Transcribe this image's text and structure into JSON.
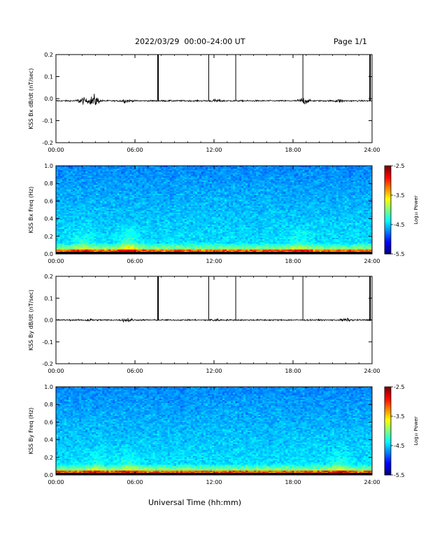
{
  "header": {
    "title": "2022/03/29  00:00–24:00 UT",
    "page": "Page 1/1"
  },
  "x_axis_label": "Universal Time (hh:mm)",
  "chart_data": [
    {
      "id": "bx_series",
      "type": "line",
      "ylabel": "KSS Bx dB/dt (nT/sec)",
      "ylim": [
        -0.2,
        0.2
      ],
      "xlim_hours": [
        0,
        24
      ],
      "x_tick_labels": [
        "00:00",
        "06:00",
        "12:00",
        "18:00",
        "24:00"
      ],
      "y_tick_labels": [
        "0.2",
        "0.1",
        "0.0",
        "-0.1",
        "-0.2"
      ],
      "baseline": -0.01,
      "noise_amplitude": 0.004,
      "spikes": [
        {
          "t_hours": 7.75,
          "y": 0.2
        },
        {
          "t_hours": 11.6,
          "y": 0.2
        },
        {
          "t_hours": 13.65,
          "y": 0.2
        },
        {
          "t_hours": 18.75,
          "y": 0.2
        },
        {
          "t_hours": 23.85,
          "y": 0.2
        }
      ],
      "disturbances": [
        {
          "t_hours": 2.0,
          "amp": 0.018
        },
        {
          "t_hours": 2.9,
          "amp": 0.035
        },
        {
          "t_hours": 5.3,
          "amp": 0.01
        },
        {
          "t_hours": 12.2,
          "amp": 0.008
        },
        {
          "t_hours": 18.8,
          "amp": 0.02
        },
        {
          "t_hours": 21.5,
          "amp": 0.008
        }
      ]
    },
    {
      "id": "bx_spectrogram",
      "type": "heatmap",
      "ylabel": "KSS Bx Freq (Hz)",
      "ylim": [
        0.0,
        1.0
      ],
      "xlim_hours": [
        0,
        24
      ],
      "x_tick_labels": [
        "00:00",
        "06:00",
        "12:00",
        "18:00",
        "24:00"
      ],
      "y_tick_labels": [
        "1.0",
        "0.8",
        "0.6",
        "0.4",
        "0.2",
        "0.0"
      ],
      "colorbar_label": "Log₁₀ Power",
      "colorbar_ticks": [
        "-2.5",
        "-3.5",
        "-4.5",
        "-5.5"
      ],
      "color_range": [
        -5.5,
        -2.5
      ],
      "low_freq_enhancement": [
        {
          "t_hours": 2.0,
          "strength": 0.6
        },
        {
          "t_hours": 5.5,
          "strength": 0.9
        },
        {
          "t_hours": 18.5,
          "strength": 0.5
        }
      ]
    },
    {
      "id": "by_series",
      "type": "line",
      "ylabel": "KSS By dB/dt (nT/sec)",
      "ylim": [
        -0.2,
        0.2
      ],
      "xlim_hours": [
        0,
        24
      ],
      "x_tick_labels": [
        "00:00",
        "06:00",
        "12:00",
        "18:00",
        "24:00"
      ],
      "y_tick_labels": [
        "0.2",
        "0.1",
        "0.0",
        "-0.1",
        "-0.2"
      ],
      "baseline": 0.0,
      "noise_amplitude": 0.004,
      "spikes": [
        {
          "t_hours": 7.75,
          "y": 0.2
        },
        {
          "t_hours": 11.6,
          "y": 0.2
        },
        {
          "t_hours": 13.65,
          "y": 0.2
        },
        {
          "t_hours": 18.75,
          "y": 0.2
        },
        {
          "t_hours": 23.85,
          "y": 0.2
        }
      ],
      "disturbances": [
        {
          "t_hours": 2.5,
          "amp": 0.008
        },
        {
          "t_hours": 5.4,
          "amp": 0.012
        },
        {
          "t_hours": 12.0,
          "amp": 0.008
        },
        {
          "t_hours": 22.0,
          "amp": 0.008
        }
      ]
    },
    {
      "id": "by_spectrogram",
      "type": "heatmap",
      "ylabel": "KSS By Freq (Hz)",
      "ylim": [
        0.0,
        1.0
      ],
      "xlim_hours": [
        0,
        24
      ],
      "x_tick_labels": [
        "00:00",
        "06:00",
        "12:00",
        "18:00",
        "24:00"
      ],
      "y_tick_labels": [
        "1.0",
        "0.8",
        "0.6",
        "0.4",
        "0.2",
        "0.0"
      ],
      "colorbar_label": "Log₁₀ Power",
      "colorbar_ticks": [
        "-2.5",
        "-3.5",
        "-4.5",
        "-5.5"
      ],
      "color_range": [
        -5.5,
        -2.5
      ],
      "low_freq_enhancement": [
        {
          "t_hours": 3.0,
          "strength": 0.5
        },
        {
          "t_hours": 5.5,
          "strength": 0.5
        },
        {
          "t_hours": 21.5,
          "strength": 0.6
        }
      ]
    }
  ]
}
